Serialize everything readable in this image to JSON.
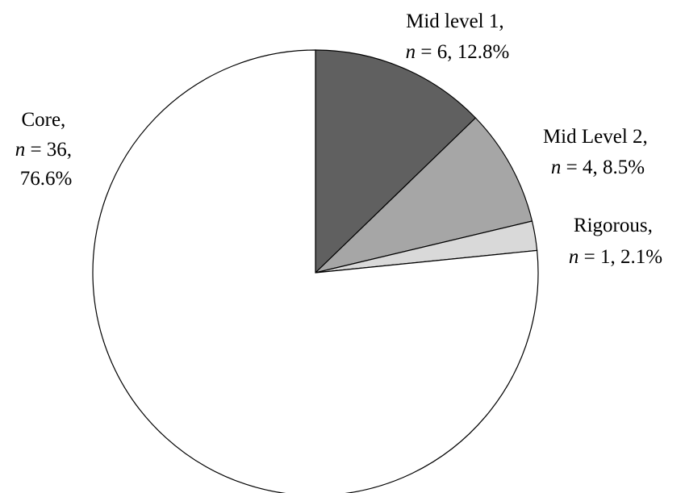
{
  "chart_data": {
    "type": "pie",
    "start_angle_deg": 90,
    "direction": "clockwise",
    "legend": "none",
    "slices": [
      {
        "category": "Mid level 1",
        "n": 6,
        "percent": 12.8,
        "color": "#606060",
        "line1": "Mid level 1,",
        "n_label": "n",
        "n_rest": " = 6, 12.8%"
      },
      {
        "category": "Mid Level 2",
        "n": 4,
        "percent": 8.5,
        "color": "#a6a6a6",
        "line1": "Mid Level 2,",
        "n_label": "n",
        "n_rest": " = 4, 8.5%"
      },
      {
        "category": "Rigorous",
        "n": 1,
        "percent": 2.1,
        "color": "#d9d9d9",
        "line1": "Rigorous,",
        "n_label": "n",
        "n_rest": " = 1,  2.1%"
      },
      {
        "category": "Core",
        "n": 36,
        "percent": 76.6,
        "color": "#ffffff",
        "line1": "Core,",
        "n_label": "n",
        "n_rest": " = 36,",
        "line3": "76.6%"
      }
    ]
  }
}
